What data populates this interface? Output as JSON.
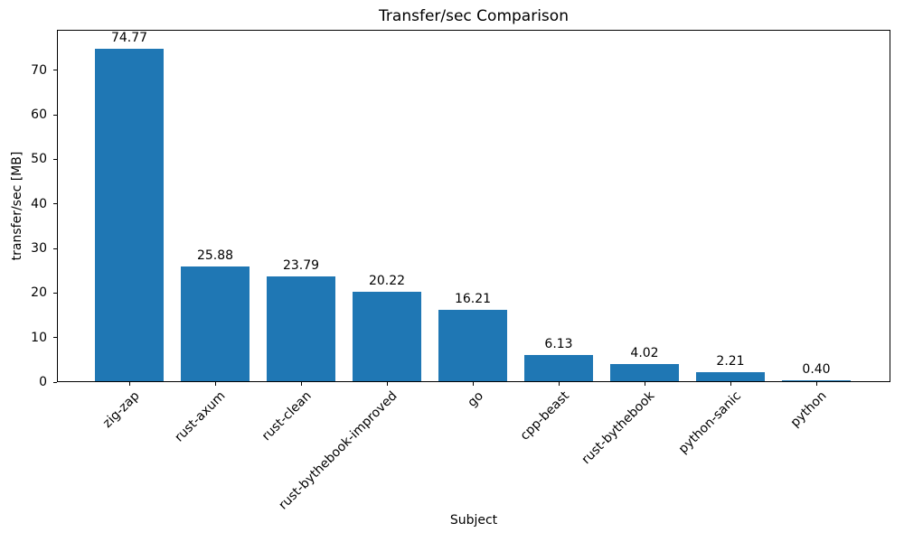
{
  "chart_data": {
    "type": "bar",
    "title": "Transfer/sec Comparison",
    "xlabel": "Subject",
    "ylabel": "transfer/sec [MB]",
    "categories": [
      "zig-zap",
      "rust-axum",
      "rust-clean",
      "rust-bythebook-improved",
      "go",
      "cpp-beast",
      "rust-bythebook",
      "python-sanic",
      "python"
    ],
    "values": [
      74.77,
      25.88,
      23.79,
      20.22,
      16.21,
      6.13,
      4.02,
      2.21,
      0.4
    ],
    "bar_value_labels": [
      "74.77",
      "25.88",
      "23.79",
      "20.22",
      "16.21",
      "6.13",
      "4.02",
      "2.21",
      "0.40"
    ],
    "yticks": [
      0,
      10,
      20,
      30,
      40,
      50,
      60,
      70
    ],
    "ylim": [
      0,
      79.1
    ],
    "bar_color": "#1f77b4",
    "axis_color": "#000000",
    "text_color": "#000000",
    "x_tick_rotation_deg": 45,
    "grid": false,
    "legend": "none"
  }
}
